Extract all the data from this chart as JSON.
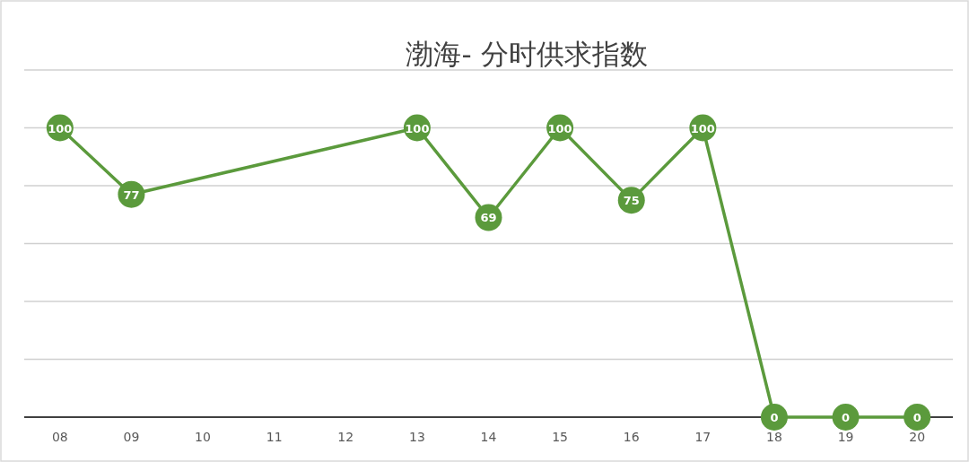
{
  "chart_data": {
    "type": "line",
    "title": "渤海- 分时供求指数",
    "categories": [
      "08",
      "09",
      "10",
      "11",
      "12",
      "13",
      "14",
      "15",
      "16",
      "17",
      "18",
      "19",
      "20"
    ],
    "series": [
      {
        "color": "#5b9a3c",
        "values": [
          100,
          77,
          null,
          null,
          null,
          100,
          69,
          100,
          75,
          100,
          0,
          0,
          0
        ]
      }
    ],
    "ylim": [
      0,
      120
    ],
    "yticks": [
      0,
      20,
      40,
      60,
      80,
      100,
      120
    ],
    "tick_labels": "x",
    "grid": "y",
    "marker": "circle",
    "line_style": "solid",
    "data_labels": true
  }
}
